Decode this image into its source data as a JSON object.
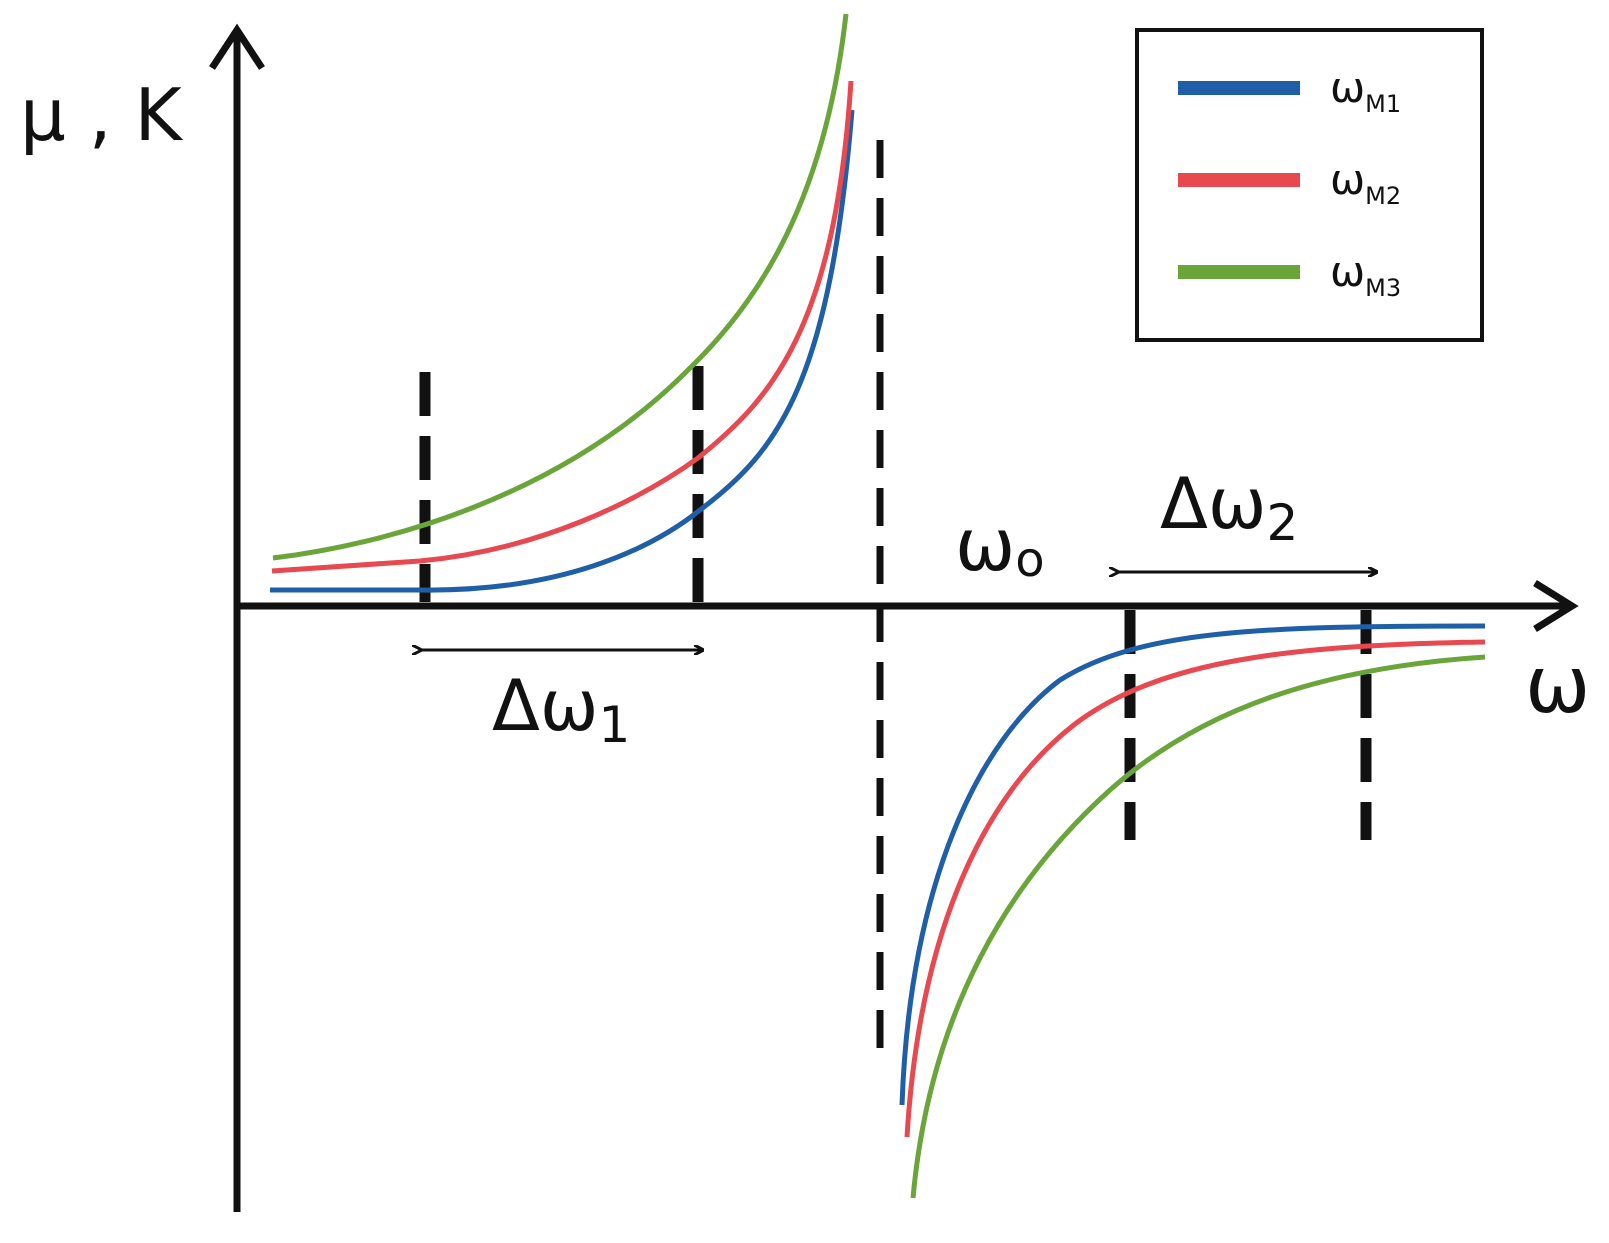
{
  "chart_data": {
    "type": "line",
    "ylabel": "μ , K",
    "xlabel": "ω",
    "resonance_label": "ω",
    "resonance_sub": "o",
    "band1_label": "Δω",
    "band1_sub": "1",
    "band2_label": "Δω",
    "band2_sub": "2",
    "legend_position": "top-right",
    "grid": false,
    "series": [
      {
        "name": "ω",
        "sub": "M1",
        "color": "#1f5fa8"
      },
      {
        "name": "ω",
        "sub": "M2",
        "color": "#e8484f"
      },
      {
        "name": "ω",
        "sub": "M3",
        "color": "#6aa53a"
      }
    ]
  }
}
